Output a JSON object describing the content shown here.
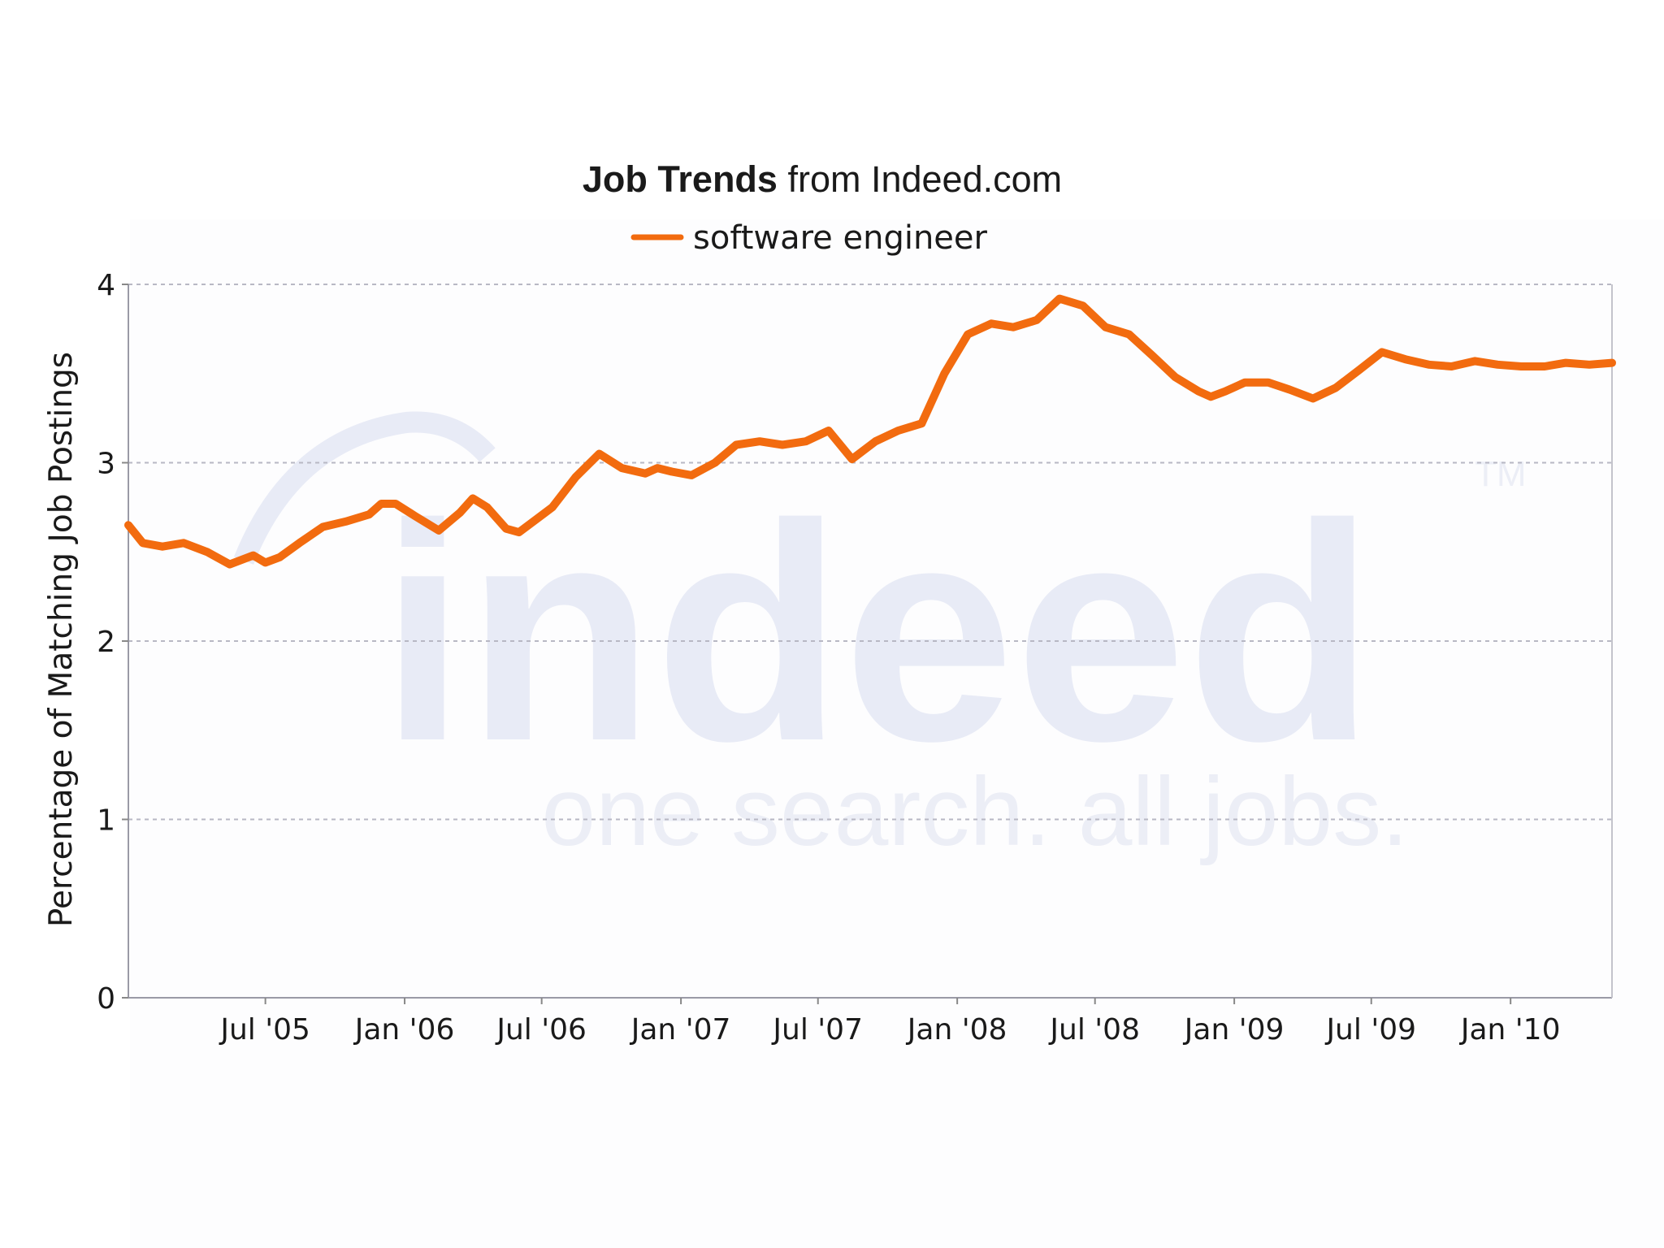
{
  "chart_data": {
    "type": "line",
    "title_bold": "Job Trends",
    "title_rest": " from Indeed.com",
    "xlabel": "",
    "ylabel": "Percentage of Matching Job Postings",
    "ylim": [
      0,
      4
    ],
    "yticks": [
      "0",
      "1",
      "2",
      "3",
      "4"
    ],
    "xlim": [
      "2005-01-01",
      "2010-05-15"
    ],
    "xticks": [
      {
        "label": "Jul '05",
        "date": "2005-07-01"
      },
      {
        "label": "Jan '06",
        "date": "2006-01-01"
      },
      {
        "label": "Jul '06",
        "date": "2006-07-01"
      },
      {
        "label": "Jan '07",
        "date": "2007-01-01"
      },
      {
        "label": "Jul '07",
        "date": "2007-07-01"
      },
      {
        "label": "Jan '08",
        "date": "2008-01-01"
      },
      {
        "label": "Jul '08",
        "date": "2008-07-01"
      },
      {
        "label": "Jan '09",
        "date": "2009-01-01"
      },
      {
        "label": "Jul '09",
        "date": "2009-07-01"
      },
      {
        "label": "Jan '10",
        "date": "2010-01-01"
      }
    ],
    "grid": true,
    "legend_position": "top-center",
    "watermark": {
      "logo": "indeed",
      "tagline": "one search. all jobs.",
      "tm": "TM"
    },
    "series": [
      {
        "name": "software engineer",
        "color": "#f26b0f",
        "x": [
          "2005-01-01",
          "2005-01-20",
          "2005-02-15",
          "2005-03-15",
          "2005-04-15",
          "2005-05-15",
          "2005-06-15",
          "2005-07-01",
          "2005-07-20",
          "2005-08-15",
          "2005-09-15",
          "2005-10-15",
          "2005-11-15",
          "2005-12-01",
          "2005-12-20",
          "2006-01-15",
          "2006-02-15",
          "2006-03-15",
          "2006-04-01",
          "2006-04-20",
          "2006-05-15",
          "2006-06-01",
          "2006-06-20",
          "2006-07-15",
          "2006-08-15",
          "2006-09-15",
          "2006-10-15",
          "2006-11-15",
          "2006-12-01",
          "2006-12-20",
          "2007-01-15",
          "2007-02-15",
          "2007-03-15",
          "2007-04-15",
          "2007-05-15",
          "2007-06-15",
          "2007-07-15",
          "2007-08-15",
          "2007-09-15",
          "2007-10-15",
          "2007-11-15",
          "2007-12-15",
          "2008-01-15",
          "2008-02-15",
          "2008-03-15",
          "2008-04-15",
          "2008-05-15",
          "2008-06-15",
          "2008-07-15",
          "2008-08-15",
          "2008-09-15",
          "2008-10-15",
          "2008-11-15",
          "2008-12-01",
          "2008-12-20",
          "2009-01-15",
          "2009-02-15",
          "2009-03-15",
          "2009-04-15",
          "2009-05-15",
          "2009-06-15",
          "2009-07-15",
          "2009-08-15",
          "2009-09-15",
          "2009-10-15",
          "2009-11-15",
          "2009-12-15",
          "2010-01-15",
          "2010-02-15",
          "2010-03-15",
          "2010-04-15",
          "2010-05-15"
        ],
        "values": [
          2.65,
          2.55,
          2.53,
          2.55,
          2.5,
          2.43,
          2.48,
          2.44,
          2.47,
          2.55,
          2.64,
          2.67,
          2.71,
          2.77,
          2.77,
          2.7,
          2.62,
          2.72,
          2.8,
          2.75,
          2.63,
          2.61,
          2.67,
          2.75,
          2.92,
          3.05,
          2.97,
          2.94,
          2.97,
          2.95,
          2.93,
          3.0,
          3.1,
          3.12,
          3.1,
          3.12,
          3.18,
          3.02,
          3.12,
          3.18,
          3.22,
          3.5,
          3.72,
          3.78,
          3.76,
          3.8,
          3.92,
          3.88,
          3.76,
          3.72,
          3.6,
          3.48,
          3.4,
          3.37,
          3.4,
          3.45,
          3.45,
          3.41,
          3.36,
          3.42,
          3.52,
          3.62,
          3.58,
          3.55,
          3.54,
          3.57,
          3.55,
          3.54,
          3.54,
          3.56,
          3.55,
          3.56
        ]
      }
    ]
  }
}
